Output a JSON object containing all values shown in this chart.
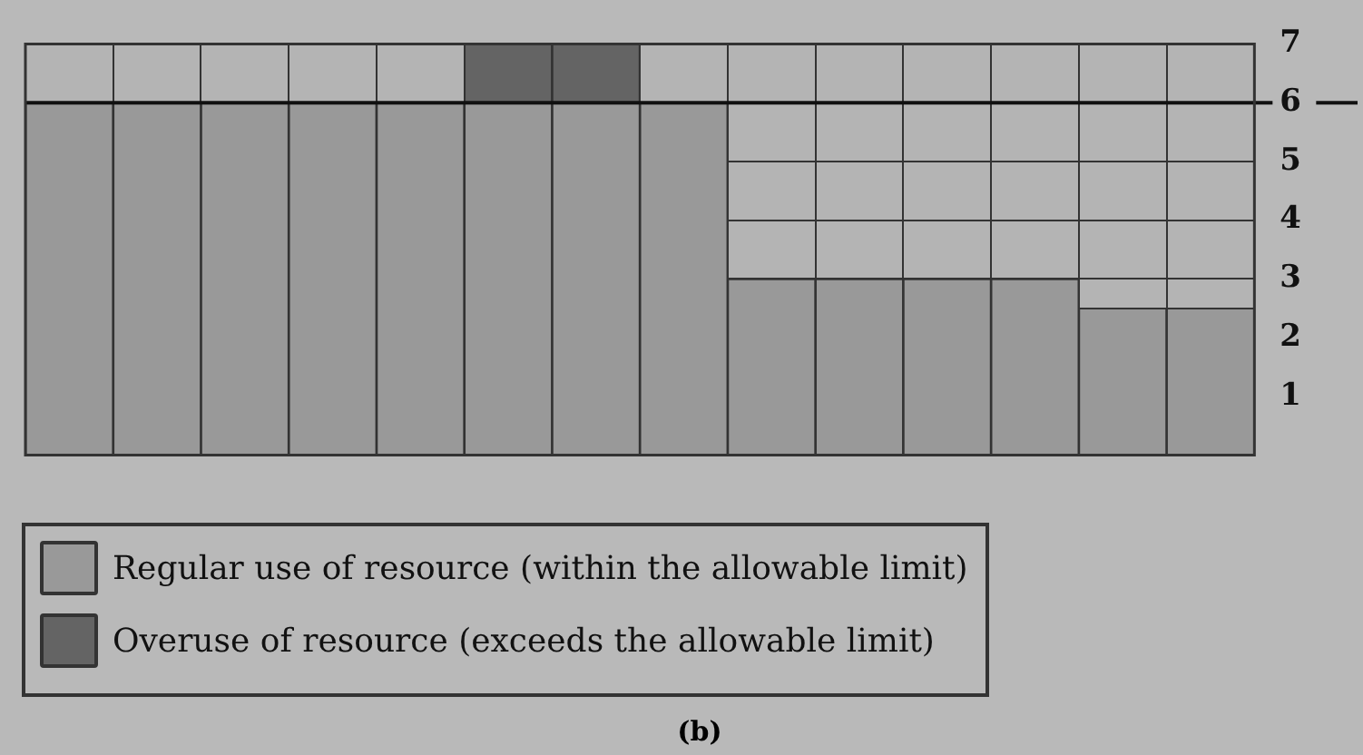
{
  "chart_data": {
    "type": "bar",
    "stacked": true,
    "categories": [
      null,
      null,
      null,
      null,
      null,
      null,
      null,
      null,
      null,
      null,
      null,
      null,
      null,
      null
    ],
    "series": [
      {
        "name": "Regular use of resource (within the allowable limit)",
        "color": "#999999",
        "values": [
          6,
          6,
          6,
          6,
          6,
          6,
          6,
          6,
          3,
          3,
          3,
          3,
          2.5,
          2.5
        ]
      },
      {
        "name": "Overuse of resource (exceeds the allowable limit)",
        "color": "#646464",
        "values": [
          null,
          null,
          null,
          null,
          null,
          1,
          1,
          null,
          null,
          null,
          null,
          null,
          null,
          null
        ]
      }
    ],
    "ylim": [
      0,
      7
    ],
    "yticks": [
      1,
      2,
      3,
      4,
      5,
      6,
      7
    ],
    "tick_labels": "y",
    "grid": true,
    "legend": "bottom left",
    "ref_lines": [
      {
        "axis": "y",
        "value": 6,
        "color": "#111111"
      }
    ],
    "annotations": [
      "(b)"
    ]
  }
}
